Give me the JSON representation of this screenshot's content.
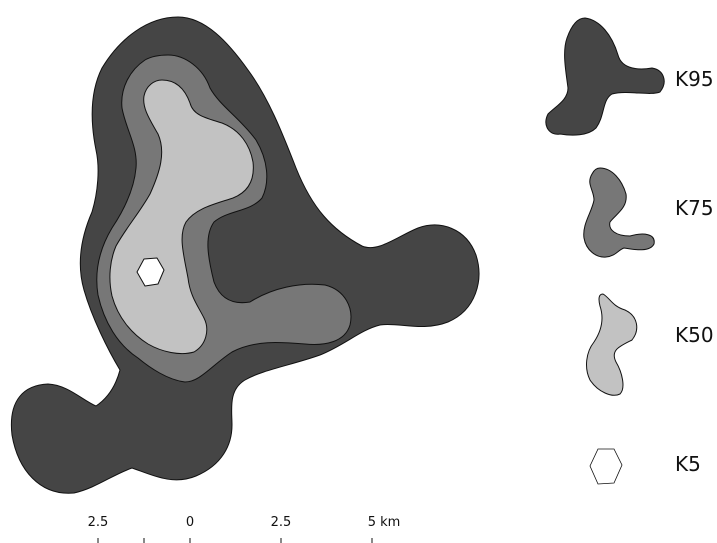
{
  "colors": {
    "k95": "#454545",
    "k75": "#777777",
    "k50": "#c2c2c2",
    "k5": "#ffffff",
    "outline": "#111111",
    "background": "#ffffff"
  },
  "legend": {
    "items": [
      {
        "label": "K95"
      },
      {
        "label": "K75"
      },
      {
        "label": "K50"
      },
      {
        "label": "K5"
      }
    ]
  },
  "scale_bar": {
    "ticks": [
      "2.5",
      "0",
      "2.5",
      "5 km"
    ]
  }
}
